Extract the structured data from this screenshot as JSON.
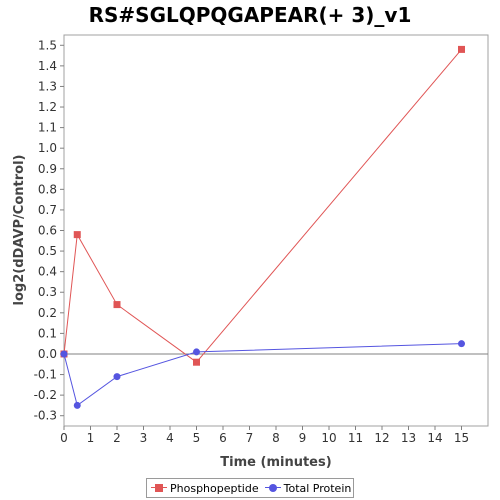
{
  "chart_data": {
    "type": "line",
    "title": "RS#SGLQPQGAPEAR(+ 3)_v1",
    "xlabel": "Time (minutes)",
    "ylabel": "log2(dDAVP/Control)",
    "xlim": [
      0,
      16
    ],
    "ylim": [
      -0.35,
      1.55
    ],
    "x_ticks": [
      "0",
      "1",
      "2",
      "3",
      "4",
      "5",
      "6",
      "7",
      "8",
      "9",
      "10",
      "11",
      "12",
      "13",
      "14",
      "15"
    ],
    "y_ticks": [
      "-0.3",
      "-0.2",
      "-0.1",
      "0.0",
      "0.1",
      "0.2",
      "0.3",
      "0.4",
      "0.5",
      "0.6",
      "0.7",
      "0.8",
      "0.9",
      "1.0",
      "1.1",
      "1.2",
      "1.3",
      "1.4",
      "1.5"
    ],
    "grid": false,
    "legend_position": "bottom",
    "series": [
      {
        "name": "Phosphopeptide",
        "color": "#e05555",
        "marker": "square",
        "x": [
          0,
          0.5,
          2,
          5,
          15
        ],
        "y": [
          0.0,
          0.58,
          0.24,
          -0.04,
          1.48
        ]
      },
      {
        "name": "Total Protein",
        "color": "#5555e0",
        "marker": "circle",
        "x": [
          0,
          0.5,
          2,
          5,
          15
        ],
        "y": [
          0.0,
          -0.25,
          -0.11,
          0.01,
          0.05
        ]
      }
    ]
  }
}
